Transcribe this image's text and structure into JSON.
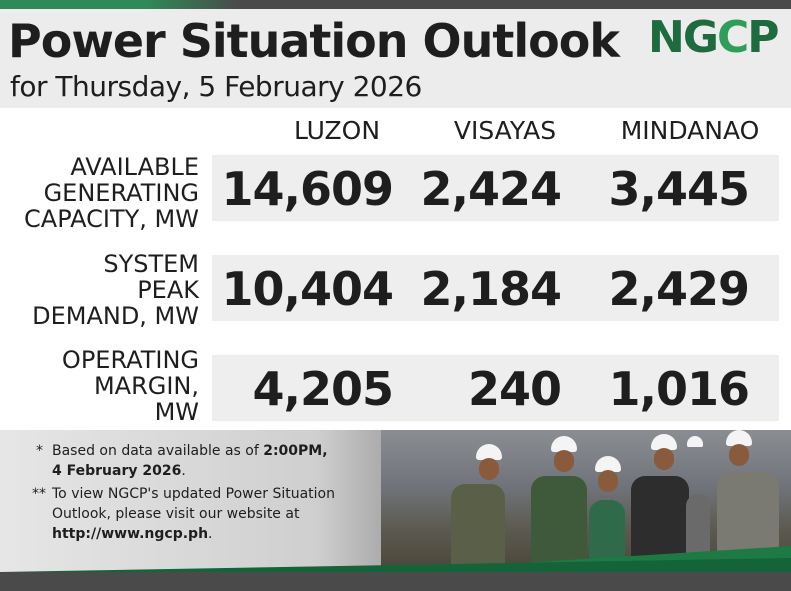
{
  "header": {
    "title": "Power Situation Outlook",
    "subtitle": "for Thursday, 5 February 2026",
    "logo": "NGCP"
  },
  "columns": [
    "LUZON",
    "VISAYAS",
    "MINDANAO"
  ],
  "rows": [
    {
      "label_lines": [
        "AVAILABLE",
        "GENERATING",
        "CAPACITY, MW"
      ],
      "values": [
        "14,609",
        "2,424",
        "3,445"
      ]
    },
    {
      "label_lines": [
        "SYSTEM",
        "PEAK",
        "DEMAND, MW"
      ],
      "values": [
        "10,404",
        "2,184",
        "2,429"
      ]
    },
    {
      "label_lines": [
        "OPERATING",
        "MARGIN,",
        "MW"
      ],
      "values": [
        "4,205",
        "240",
        "1,016"
      ]
    }
  ],
  "footnotes": {
    "note1_marker": "*",
    "note1_text_a": "Based on data available as of ",
    "note1_time": "2:00PM,",
    "note1_date": "4 February 2026",
    "note1_end": ".",
    "note2_marker": "**",
    "note2_line1": "To view NGCP's updated Power Situation",
    "note2_line2": "Outlook, please visit our website at",
    "note2_url": "http://www.ngcp.ph",
    "note2_end": "."
  },
  "colors": {
    "brand_green": "#1d6b3f",
    "accent_green": "#2f9e5a",
    "text": "#1e1e1e",
    "bar": "#4a4a4a"
  }
}
